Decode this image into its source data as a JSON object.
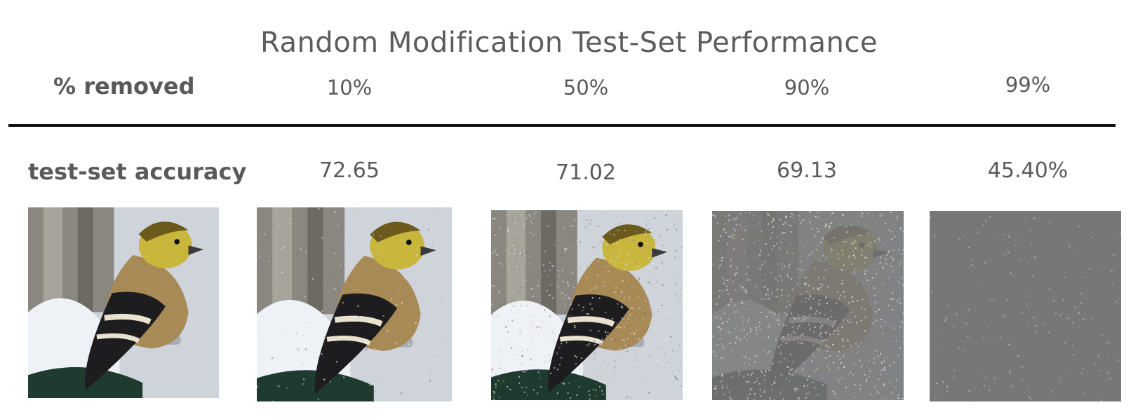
{
  "title": "Random Modification Test-Set Performance",
  "header": {
    "row_label": "% removed",
    "columns": [
      "10%",
      "50%",
      "90%",
      "99%"
    ]
  },
  "accuracy": {
    "row_label": "test-set accuracy",
    "values": [
      "72.65",
      "71.02",
      "69.13",
      "45.40%"
    ]
  },
  "images": [
    {
      "name": "original",
      "noise_fraction": 0
    },
    {
      "name": "removed-10",
      "noise_fraction": 0.1
    },
    {
      "name": "removed-50",
      "noise_fraction": 0.5
    },
    {
      "name": "removed-90",
      "noise_fraction": 0.9
    },
    {
      "name": "removed-99",
      "noise_fraction": 0.99
    }
  ],
  "colors": {
    "text": "#5a5a5a",
    "rule": "#111111",
    "gray_fill": "#777777"
  }
}
